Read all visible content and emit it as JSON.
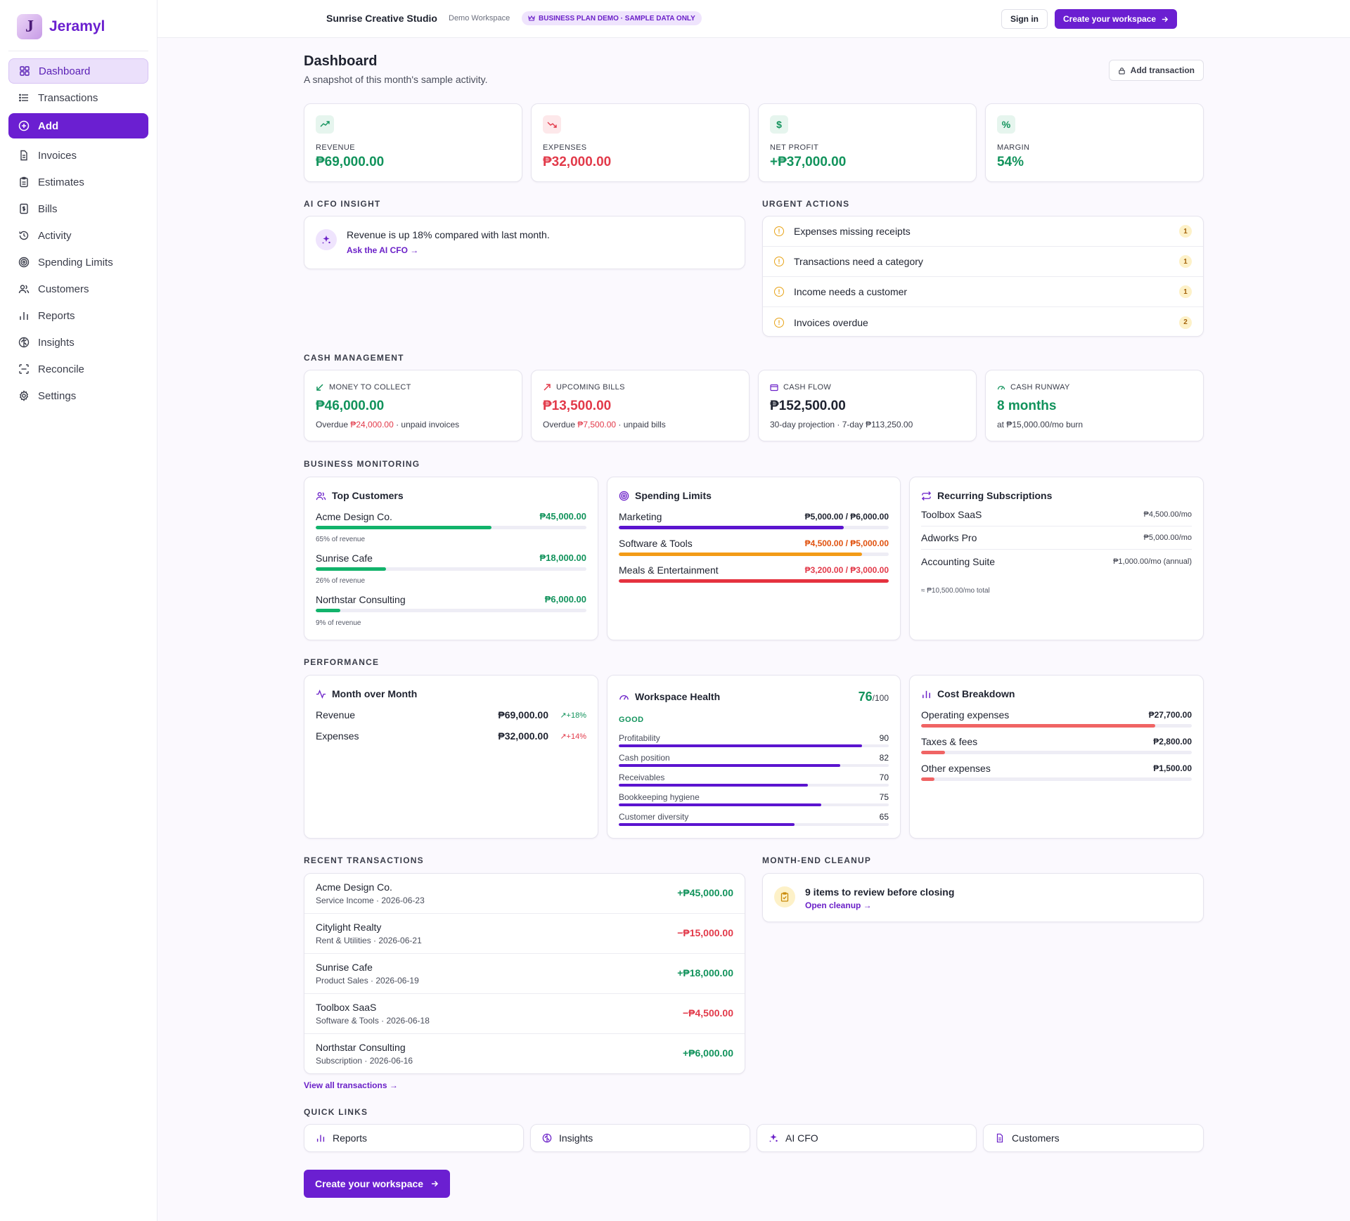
{
  "brand": {
    "name": "Jeramyl",
    "logo_letter": "J"
  },
  "sidebar": {
    "items": [
      {
        "label": "Dashboard",
        "icon": "grid-icon"
      },
      {
        "label": "Transactions",
        "icon": "list-icon"
      },
      {
        "label": "Add",
        "icon": "plus-circle-icon"
      },
      {
        "label": "Invoices",
        "icon": "file-icon"
      },
      {
        "label": "Estimates",
        "icon": "clipboard-icon"
      },
      {
        "label": "Bills",
        "icon": "dollar-file-icon"
      },
      {
        "label": "Activity",
        "icon": "history-icon"
      },
      {
        "label": "Spending Limits",
        "icon": "target-icon"
      },
      {
        "label": "Customers",
        "icon": "users-icon"
      },
      {
        "label": "Reports",
        "icon": "bar-chart-icon"
      },
      {
        "label": "Insights",
        "icon": "brain-icon"
      },
      {
        "label": "Reconcile",
        "icon": "scan-icon"
      },
      {
        "label": "Settings",
        "icon": "gear-icon"
      }
    ]
  },
  "topbar": {
    "workspace": "Sunrise Creative Studio",
    "workspace_sub": "Demo Workspace",
    "demo_pill": "BUSINESS PLAN DEMO · SAMPLE DATA ONLY",
    "signin": "Sign in",
    "cta": "Create your workspace"
  },
  "header": {
    "title": "Dashboard",
    "subtitle": "A snapshot of this month's sample activity.",
    "add_tx": "Add transaction"
  },
  "kpis": [
    {
      "label": "REVENUE",
      "value": "₱69,000.00"
    },
    {
      "label": "EXPENSES",
      "value": "₱32,000.00"
    },
    {
      "label": "NET PROFIT",
      "value": "+₱37,000.00"
    },
    {
      "label": "MARGIN",
      "value": "54%"
    }
  ],
  "sections": {
    "ai": "AI CFO INSIGHT",
    "urgent": "URGENT ACTIONS",
    "cash": "CASH MANAGEMENT",
    "monitoring": "BUSINESS MONITORING",
    "performance": "PERFORMANCE",
    "recent": "RECENT TRANSACTIONS",
    "cleanup": "MONTH-END CLEANUP",
    "quick": "QUICK LINKS"
  },
  "ai": {
    "text": "Revenue is up 18% compared with last month.",
    "link": "Ask the AI CFO →"
  },
  "urgent": [
    {
      "text": "Expenses missing receipts",
      "count": "1"
    },
    {
      "text": "Transactions need a category",
      "count": "1"
    },
    {
      "text": "Income needs a customer",
      "count": "1"
    },
    {
      "text": "Invoices overdue",
      "count": "2"
    }
  ],
  "cash": [
    {
      "label": "MONEY TO COLLECT",
      "value": "₱46,000.00",
      "note_pre": "Overdue ",
      "note_hl": "₱24,000.00",
      "note_post": " · unpaid invoices"
    },
    {
      "label": "UPCOMING BILLS",
      "value": "₱13,500.00",
      "note_pre": "Overdue ",
      "note_hl": "₱7,500.00",
      "note_post": " · unpaid bills"
    },
    {
      "label": "CASH FLOW",
      "value": "₱152,500.00",
      "note_pre": "30-day projection · 7-day ₱113,250.00",
      "note_hl": "",
      "note_post": ""
    },
    {
      "label": "CASH RUNWAY",
      "value": "8 months",
      "note_pre": "at ₱15,000.00/mo burn",
      "note_hl": "",
      "note_post": ""
    }
  ],
  "top_customers": {
    "title": "Top Customers",
    "rows": [
      {
        "name": "Acme Design Co.",
        "value": "₱45,000.00",
        "share": "65% of revenue",
        "pct": 0.65
      },
      {
        "name": "Sunrise Cafe",
        "value": "₱18,000.00",
        "share": "26% of revenue",
        "pct": 0.26
      },
      {
        "name": "Northstar Consulting",
        "value": "₱6,000.00",
        "share": "9% of revenue",
        "pct": 0.09
      }
    ]
  },
  "spending_limits": {
    "title": "Spending Limits",
    "rows": [
      {
        "name": "Marketing",
        "value": "₱5,000.00 / ₱6,000.00",
        "pct": 0.833,
        "color": "#5b14cf",
        "val_color": "#1f2330"
      },
      {
        "name": "Software & Tools",
        "value": "₱4,500.00 / ₱5,000.00",
        "pct": 0.9,
        "color": "#f39b17",
        "val_color": "#e0520f"
      },
      {
        "name": "Meals & Entertainment",
        "value": "₱3,200.00 / ₱3,000.00",
        "pct": 1.0,
        "color": "#e5323f",
        "val_color": "#e23a4a"
      }
    ]
  },
  "subscriptions": {
    "title": "Recurring Subscriptions",
    "rows": [
      {
        "name": "Toolbox SaaS",
        "value": "₱4,500.00/mo"
      },
      {
        "name": "Adworks Pro",
        "value": "₱5,000.00/mo"
      },
      {
        "name": "Accounting Suite",
        "value": "₱1,000.00/mo (annual)"
      }
    ],
    "total": "≈ ₱10,500.00/mo total"
  },
  "mom": {
    "title": "Month over Month",
    "rows": [
      {
        "name": "Revenue",
        "value": "₱69,000.00",
        "delta": "+18%",
        "delta_color": "#12935c"
      },
      {
        "name": "Expenses",
        "value": "₱32,000.00",
        "delta": "+14%",
        "delta_color": "#e23a4a"
      }
    ]
  },
  "health": {
    "title": "Workspace Health",
    "score": "76",
    "max": "/100",
    "status": "GOOD",
    "rows": [
      {
        "name": "Profitability",
        "value": "90",
        "pct": 0.9
      },
      {
        "name": "Cash position",
        "value": "82",
        "pct": 0.82
      },
      {
        "name": "Receivables",
        "value": "70",
        "pct": 0.7
      },
      {
        "name": "Bookkeeping hygiene",
        "value": "75",
        "pct": 0.75
      },
      {
        "name": "Customer diversity",
        "value": "65",
        "pct": 0.65
      }
    ]
  },
  "costs": {
    "title": "Cost Breakdown",
    "rows": [
      {
        "name": "Operating expenses",
        "value": "₱27,700.00",
        "pct": 0.865
      },
      {
        "name": "Taxes & fees",
        "value": "₱2,800.00",
        "pct": 0.0875
      },
      {
        "name": "Other expenses",
        "value": "₱1,500.00",
        "pct": 0.05
      }
    ]
  },
  "transactions": [
    {
      "name": "Acme Design Co.",
      "meta": "Service Income · 2026-06-23",
      "amount": "+₱45,000.00",
      "kind": "in"
    },
    {
      "name": "Citylight Realty",
      "meta": "Rent & Utilities · 2026-06-21",
      "amount": "−₱15,000.00",
      "kind": "out"
    },
    {
      "name": "Sunrise Cafe",
      "meta": "Product Sales · 2026-06-19",
      "amount": "+₱18,000.00",
      "kind": "in"
    },
    {
      "name": "Toolbox SaaS",
      "meta": "Software & Tools · 2026-06-18",
      "amount": "−₱4,500.00",
      "kind": "out"
    },
    {
      "name": "Northstar Consulting",
      "meta": "Subscription · 2026-06-16",
      "amount": "+₱6,000.00",
      "kind": "in"
    }
  ],
  "view_all": "View all transactions →",
  "cleanup": {
    "text": "9 items to review before closing",
    "link": "Open cleanup →"
  },
  "quick_links": [
    {
      "label": "Reports",
      "icon": "bar-chart-icon"
    },
    {
      "label": "Insights",
      "icon": "brain-icon"
    },
    {
      "label": "AI CFO",
      "icon": "sparkle-icon"
    },
    {
      "label": "Customers",
      "icon": "file-icon"
    }
  ],
  "bottom_cta": "Create your workspace",
  "colors": {
    "accent": "#6b1fd1",
    "positive": "#12935c",
    "negative": "#e23a4a",
    "warning": "#e8a317"
  }
}
